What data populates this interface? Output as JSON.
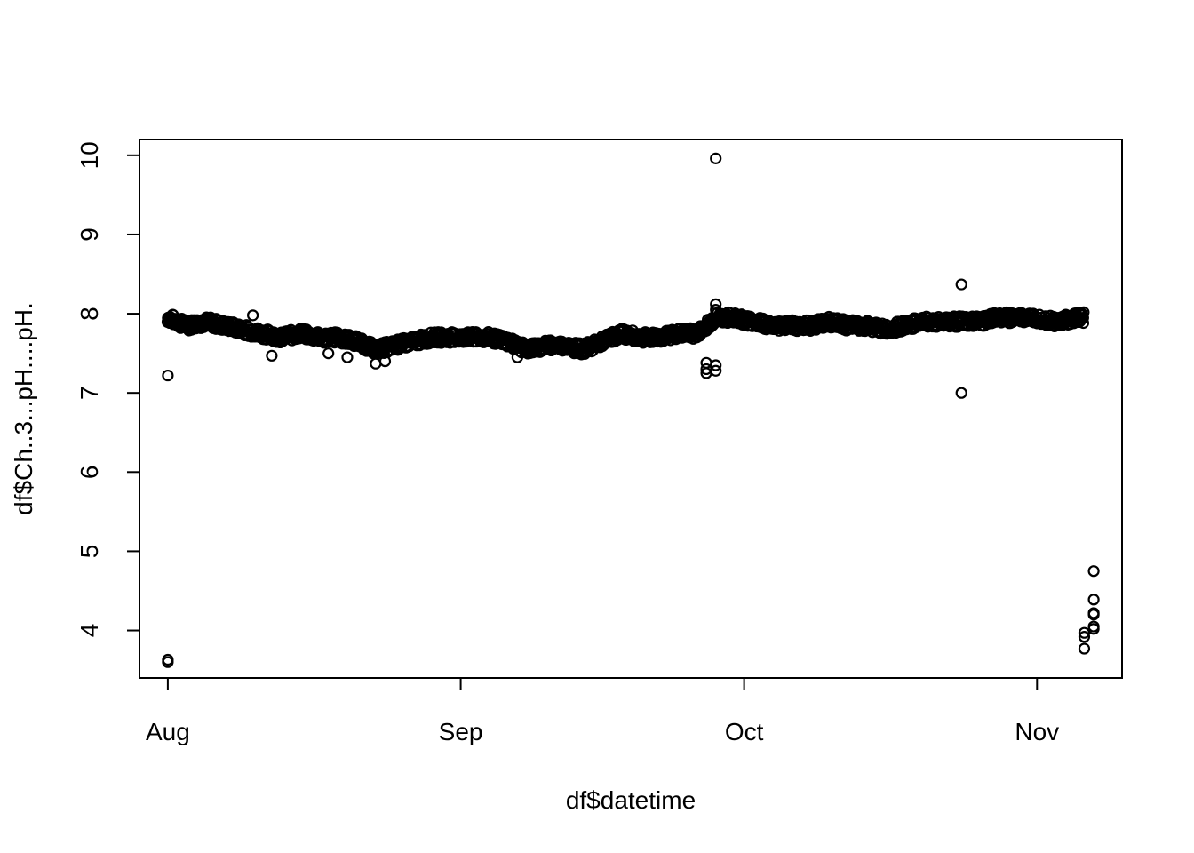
{
  "chart_data": {
    "type": "scatter",
    "title": "",
    "xlabel": "df$datetime",
    "ylabel": "df$Ch..3...pH....pH.",
    "x_axis": {
      "ticks": [
        {
          "label": "Aug",
          "date": "08-01"
        },
        {
          "label": "Sep",
          "date": "09-01"
        },
        {
          "label": "Oct",
          "date": "10-01"
        },
        {
          "label": "Nov",
          "date": "11-01"
        }
      ],
      "range": [
        "07-29",
        "11-10"
      ]
    },
    "y_axis": {
      "ticks": [
        4,
        5,
        6,
        7,
        8,
        9,
        10
      ],
      "range": [
        3.4,
        10.2
      ]
    },
    "grid": false,
    "marker": "open-circle",
    "baseline_series": [
      {
        "date": "08-01",
        "ph": 7.95
      },
      {
        "date": "08-02",
        "ph": 7.9
      },
      {
        "date": "08-03",
        "ph": 7.85
      },
      {
        "date": "08-05",
        "ph": 7.9
      },
      {
        "date": "08-07",
        "ph": 7.85
      },
      {
        "date": "08-09",
        "ph": 7.8
      },
      {
        "date": "08-11",
        "ph": 7.75
      },
      {
        "date": "08-13",
        "ph": 7.7
      },
      {
        "date": "08-15",
        "ph": 7.75
      },
      {
        "date": "08-17",
        "ph": 7.7
      },
      {
        "date": "08-19",
        "ph": 7.7
      },
      {
        "date": "08-21",
        "ph": 7.65
      },
      {
        "date": "08-23",
        "ph": 7.55
      },
      {
        "date": "08-25",
        "ph": 7.6
      },
      {
        "date": "08-27",
        "ph": 7.65
      },
      {
        "date": "08-29",
        "ph": 7.7
      },
      {
        "date": "08-31",
        "ph": 7.7
      },
      {
        "date": "09-02",
        "ph": 7.7
      },
      {
        "date": "09-04",
        "ph": 7.7
      },
      {
        "date": "09-06",
        "ph": 7.65
      },
      {
        "date": "09-08",
        "ph": 7.55
      },
      {
        "date": "09-10",
        "ph": 7.6
      },
      {
        "date": "09-12",
        "ph": 7.6
      },
      {
        "date": "09-14",
        "ph": 7.55
      },
      {
        "date": "09-16",
        "ph": 7.65
      },
      {
        "date": "09-18",
        "ph": 7.75
      },
      {
        "date": "09-20",
        "ph": 7.7
      },
      {
        "date": "09-22",
        "ph": 7.7
      },
      {
        "date": "09-24",
        "ph": 7.75
      },
      {
        "date": "09-26",
        "ph": 7.75
      },
      {
        "date": "09-27",
        "ph": 7.85
      },
      {
        "date": "09-28",
        "ph": 7.95
      },
      {
        "date": "09-30",
        "ph": 7.95
      },
      {
        "date": "10-02",
        "ph": 7.9
      },
      {
        "date": "10-04",
        "ph": 7.85
      },
      {
        "date": "10-06",
        "ph": 7.85
      },
      {
        "date": "10-08",
        "ph": 7.85
      },
      {
        "date": "10-10",
        "ph": 7.9
      },
      {
        "date": "10-12",
        "ph": 7.85
      },
      {
        "date": "10-14",
        "ph": 7.85
      },
      {
        "date": "10-16",
        "ph": 7.8
      },
      {
        "date": "10-18",
        "ph": 7.85
      },
      {
        "date": "10-20",
        "ph": 7.9
      },
      {
        "date": "10-22",
        "ph": 7.9
      },
      {
        "date": "10-24",
        "ph": 7.9
      },
      {
        "date": "10-26",
        "ph": 7.9
      },
      {
        "date": "10-28",
        "ph": 7.95
      },
      {
        "date": "10-30",
        "ph": 7.95
      },
      {
        "date": "11-01",
        "ph": 7.95
      },
      {
        "date": "11-03",
        "ph": 7.9
      },
      {
        "date": "11-05",
        "ph": 7.95
      },
      {
        "date": "11-06",
        "ph": 7.95
      }
    ],
    "outliers": [
      {
        "date": "08-01",
        "ph": 3.6
      },
      {
        "date": "08-01",
        "ph": 3.63
      },
      {
        "date": "08-01",
        "ph": 7.22
      },
      {
        "date": "08-10",
        "ph": 7.98
      },
      {
        "date": "08-12",
        "ph": 7.47
      },
      {
        "date": "08-18",
        "ph": 7.5
      },
      {
        "date": "08-20",
        "ph": 7.45
      },
      {
        "date": "08-23",
        "ph": 7.37
      },
      {
        "date": "08-24",
        "ph": 7.4
      },
      {
        "date": "09-07",
        "ph": 7.45
      },
      {
        "date": "09-13",
        "ph": 7.5
      },
      {
        "date": "09-27",
        "ph": 7.25
      },
      {
        "date": "09-27",
        "ph": 7.3
      },
      {
        "date": "09-27",
        "ph": 7.38
      },
      {
        "date": "09-28",
        "ph": 7.28
      },
      {
        "date": "09-28",
        "ph": 7.35
      },
      {
        "date": "09-28",
        "ph": 8.05
      },
      {
        "date": "09-28",
        "ph": 8.12
      },
      {
        "date": "09-28",
        "ph": 9.96
      },
      {
        "date": "10-24",
        "ph": 8.37
      },
      {
        "date": "10-24",
        "ph": 7.0
      },
      {
        "date": "11-06",
        "ph": 3.77
      },
      {
        "date": "11-06",
        "ph": 3.92
      },
      {
        "date": "11-06",
        "ph": 3.97
      },
      {
        "date": "11-07",
        "ph": 4.02
      },
      {
        "date": "11-07",
        "ph": 4.05
      },
      {
        "date": "11-07",
        "ph": 4.2
      },
      {
        "date": "11-07",
        "ph": 4.22
      },
      {
        "date": "11-07",
        "ph": 4.39
      },
      {
        "date": "11-07",
        "ph": 4.75
      }
    ]
  }
}
